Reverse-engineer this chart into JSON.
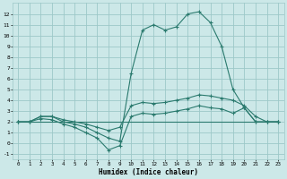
{
  "xlabel": "Humidex (Indice chaleur)",
  "x": [
    0,
    1,
    2,
    3,
    4,
    5,
    6,
    7,
    8,
    9,
    10,
    11,
    12,
    13,
    14,
    15,
    16,
    17,
    18,
    19,
    20,
    21,
    22,
    23
  ],
  "line_max": [
    2.0,
    2.0,
    2.5,
    2.5,
    2.0,
    1.8,
    1.5,
    1.0,
    0.5,
    0.2,
    6.5,
    10.5,
    11.0,
    10.5,
    10.8,
    12.0,
    12.2,
    11.2,
    9.0,
    5.0,
    3.3,
    2.0,
    2.0,
    2.0
  ],
  "line_upper": [
    2.0,
    2.0,
    2.5,
    2.5,
    2.2,
    2.0,
    1.8,
    1.5,
    1.2,
    1.5,
    3.5,
    3.8,
    3.7,
    3.8,
    4.0,
    4.2,
    4.5,
    4.4,
    4.2,
    4.0,
    3.5,
    2.5,
    2.0,
    2.0
  ],
  "line_lower": [
    2.0,
    2.0,
    2.3,
    2.2,
    1.8,
    1.5,
    1.0,
    0.5,
    -0.6,
    -0.2,
    2.5,
    2.8,
    2.7,
    2.8,
    3.0,
    3.2,
    3.5,
    3.3,
    3.2,
    2.8,
    3.3,
    2.0,
    2.0,
    2.0
  ],
  "line_flat": [
    2.0,
    2.0,
    2.0,
    2.0,
    2.0,
    2.0,
    2.0,
    2.0,
    2.0,
    2.0,
    2.0,
    2.0,
    2.0,
    2.0,
    2.0,
    2.0,
    2.0,
    2.0,
    2.0,
    2.0,
    2.0,
    2.0,
    2.0,
    2.0
  ],
  "color": "#2a7a6e",
  "bg_color": "#cce8e8",
  "grid_color": "#9dc8c8",
  "ylim": [
    -1.5,
    13.0
  ],
  "xlim": [
    -0.5,
    23.5
  ],
  "yticks": [
    -1,
    0,
    1,
    2,
    3,
    4,
    5,
    6,
    7,
    8,
    9,
    10,
    11,
    12
  ],
  "xticks": [
    0,
    1,
    2,
    3,
    4,
    5,
    6,
    7,
    8,
    9,
    10,
    11,
    12,
    13,
    14,
    15,
    16,
    17,
    18,
    19,
    20,
    21,
    22,
    23
  ]
}
